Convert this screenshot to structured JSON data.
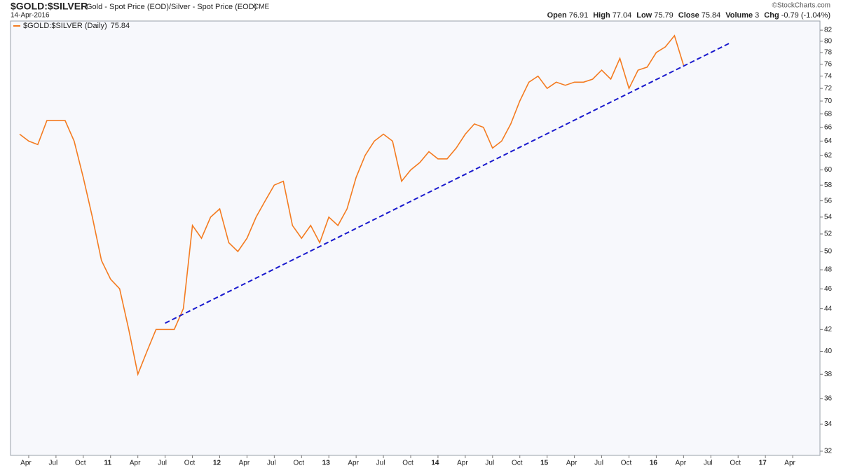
{
  "chart_data": {
    "type": "line",
    "symbol": "$GOLD:$SILVER",
    "description": "Gold - Spot Price (EOD)/Silver - Spot Price (EOD)",
    "exchange": "CME",
    "date": "14-Apr-2016",
    "credit": "©StockCharts.com",
    "quote": [
      {
        "label": "Open",
        "value": 76.91
      },
      {
        "label": "High",
        "value": 77.04
      },
      {
        "label": "Low",
        "value": 75.79
      },
      {
        "label": "Close",
        "value": 75.84
      },
      {
        "label": "Volume",
        "value": 3
      },
      {
        "label": "Chg",
        "value": "-0.79 (-1.04%)"
      }
    ],
    "x": [
      "2010-03",
      "2010-04",
      "2010-05",
      "2010-06",
      "2010-07",
      "2010-08",
      "2010-09",
      "2010-10",
      "2010-11",
      "2010-12",
      "2011-01",
      "2011-02",
      "2011-03",
      "2011-04",
      "2011-05",
      "2011-06",
      "2011-07",
      "2011-08",
      "2011-09",
      "2011-10",
      "2011-11",
      "2011-12",
      "2012-01",
      "2012-02",
      "2012-03",
      "2012-04",
      "2012-05",
      "2012-06",
      "2012-07",
      "2012-08",
      "2012-09",
      "2012-10",
      "2012-11",
      "2012-12",
      "2013-01",
      "2013-02",
      "2013-03",
      "2013-04",
      "2013-05",
      "2013-06",
      "2013-07",
      "2013-08",
      "2013-09",
      "2013-10",
      "2013-11",
      "2013-12",
      "2014-01",
      "2014-02",
      "2014-03",
      "2014-04",
      "2014-05",
      "2014-06",
      "2014-07",
      "2014-08",
      "2014-09",
      "2014-10",
      "2014-11",
      "2014-12",
      "2015-01",
      "2015-02",
      "2015-03",
      "2015-04",
      "2015-05",
      "2015-06",
      "2015-07",
      "2015-08",
      "2015-09",
      "2015-10",
      "2015-11",
      "2015-12",
      "2016-01",
      "2016-02",
      "2016-03",
      "2016-04"
    ],
    "series": [
      {
        "name": "$GOLD:$SILVER (Daily)",
        "color": "#f47b20",
        "values": [
          65,
          64,
          63.5,
          67,
          67,
          67,
          64,
          59,
          54,
          49,
          47,
          46,
          42,
          38,
          40,
          42,
          42,
          42,
          44,
          53,
          51.5,
          54,
          55,
          51,
          50,
          51.5,
          54,
          56,
          58,
          58.5,
          53,
          51.5,
          53,
          51,
          54,
          53,
          55,
          59,
          62,
          64,
          65,
          64,
          58.5,
          60,
          61,
          62.5,
          61.5,
          61.5,
          63,
          65,
          66.5,
          66,
          63,
          64,
          66.5,
          70,
          73,
          74,
          72,
          73,
          72.5,
          73,
          73,
          73.5,
          75,
          73.5,
          77,
          72,
          75,
          75.5,
          78,
          79,
          81,
          75.84
        ]
      }
    ],
    "trendline": {
      "x": [
        "2011-07",
        "2016-09"
      ],
      "values": [
        42.6,
        79.6
      ],
      "color": "#1a1acd"
    },
    "xlim": [
      "2010-02",
      "2017-07"
    ],
    "xticks": [
      {
        "value": "2010-04",
        "label": "Apr"
      },
      {
        "value": "2010-07",
        "label": "Jul"
      },
      {
        "value": "2010-10",
        "label": "Oct"
      },
      {
        "value": "2011-01",
        "label": "11"
      },
      {
        "value": "2011-04",
        "label": "Apr"
      },
      {
        "value": "2011-07",
        "label": "Jul"
      },
      {
        "value": "2011-10",
        "label": "Oct"
      },
      {
        "value": "2012-01",
        "label": "12"
      },
      {
        "value": "2012-04",
        "label": "Apr"
      },
      {
        "value": "2012-07",
        "label": "Jul"
      },
      {
        "value": "2012-10",
        "label": "Oct"
      },
      {
        "value": "2013-01",
        "label": "13"
      },
      {
        "value": "2013-04",
        "label": "Apr"
      },
      {
        "value": "2013-07",
        "label": "Jul"
      },
      {
        "value": "2013-10",
        "label": "Oct"
      },
      {
        "value": "2014-01",
        "label": "14"
      },
      {
        "value": "2014-04",
        "label": "Apr"
      },
      {
        "value": "2014-07",
        "label": "Jul"
      },
      {
        "value": "2014-10",
        "label": "Oct"
      },
      {
        "value": "2015-01",
        "label": "15"
      },
      {
        "value": "2015-04",
        "label": "Apr"
      },
      {
        "value": "2015-07",
        "label": "Jul"
      },
      {
        "value": "2015-10",
        "label": "Oct"
      },
      {
        "value": "2016-01",
        "label": "16"
      },
      {
        "value": "2016-04",
        "label": "Apr"
      },
      {
        "value": "2016-07",
        "label": "Jul"
      },
      {
        "value": "2016-10",
        "label": "Oct"
      },
      {
        "value": "2017-01",
        "label": "17"
      },
      {
        "value": "2017-04",
        "label": "Apr"
      }
    ],
    "ylim": [
      31.7,
      83.7
    ],
    "yticks": [
      32,
      34,
      36,
      38,
      40,
      42,
      44,
      46,
      48,
      50,
      52,
      54,
      56,
      58,
      60,
      62,
      64,
      66,
      68,
      70,
      72,
      74,
      76,
      78,
      80,
      82
    ],
    "log_scale": true,
    "background": "#f7f8fc"
  }
}
